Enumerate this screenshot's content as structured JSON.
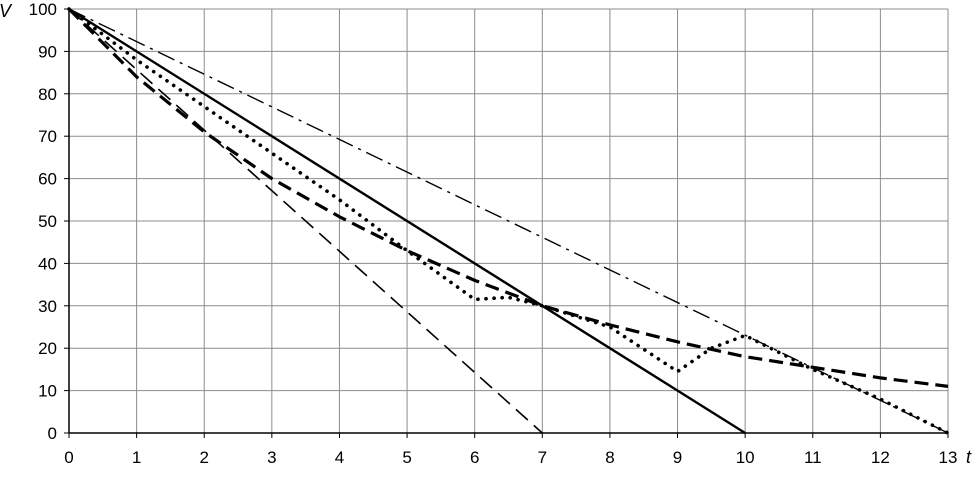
{
  "chart_data": {
    "type": "line",
    "xlabel": "t",
    "ylabel": "V",
    "xlim": [
      0,
      13
    ],
    "ylim": [
      0,
      100
    ],
    "x_ticks": [
      "0",
      "1",
      "2",
      "3",
      "4",
      "5",
      "6",
      "7",
      "8",
      "9",
      "10",
      "11",
      "12",
      "13"
    ],
    "y_ticks": [
      "0",
      "10",
      "20",
      "30",
      "40",
      "50",
      "60",
      "70",
      "80",
      "90",
      "100"
    ],
    "grid": true,
    "legend": "none",
    "series": [
      {
        "style": "solid",
        "color": "#000000",
        "x": [
          0,
          10
        ],
        "y": [
          100,
          0
        ]
      },
      {
        "style": "dashed",
        "color": "#000000",
        "x": [
          0,
          7
        ],
        "y": [
          100,
          0
        ]
      },
      {
        "style": "dash-dot",
        "color": "#000000",
        "x": [
          0,
          13
        ],
        "y": [
          100,
          0
        ]
      },
      {
        "style": "bold-dashed",
        "color": "#000000",
        "x": [
          0,
          1,
          2,
          3,
          4,
          5,
          6,
          7,
          8,
          9,
          10,
          11,
          12,
          13
        ],
        "y": [
          100,
          84,
          71,
          60,
          51,
          43,
          36,
          30,
          25.5,
          21.5,
          18,
          15.5,
          13,
          11
        ]
      },
      {
        "style": "dotted",
        "color": "#000000",
        "x": [
          0,
          1,
          2,
          3,
          4,
          5,
          6,
          6.5,
          7,
          8,
          9,
          9.5,
          10,
          11,
          12,
          13
        ],
        "y": [
          100,
          88,
          77,
          66,
          55,
          43,
          31.5,
          32,
          30,
          25,
          14.5,
          20,
          23,
          15,
          8,
          0
        ]
      }
    ]
  }
}
